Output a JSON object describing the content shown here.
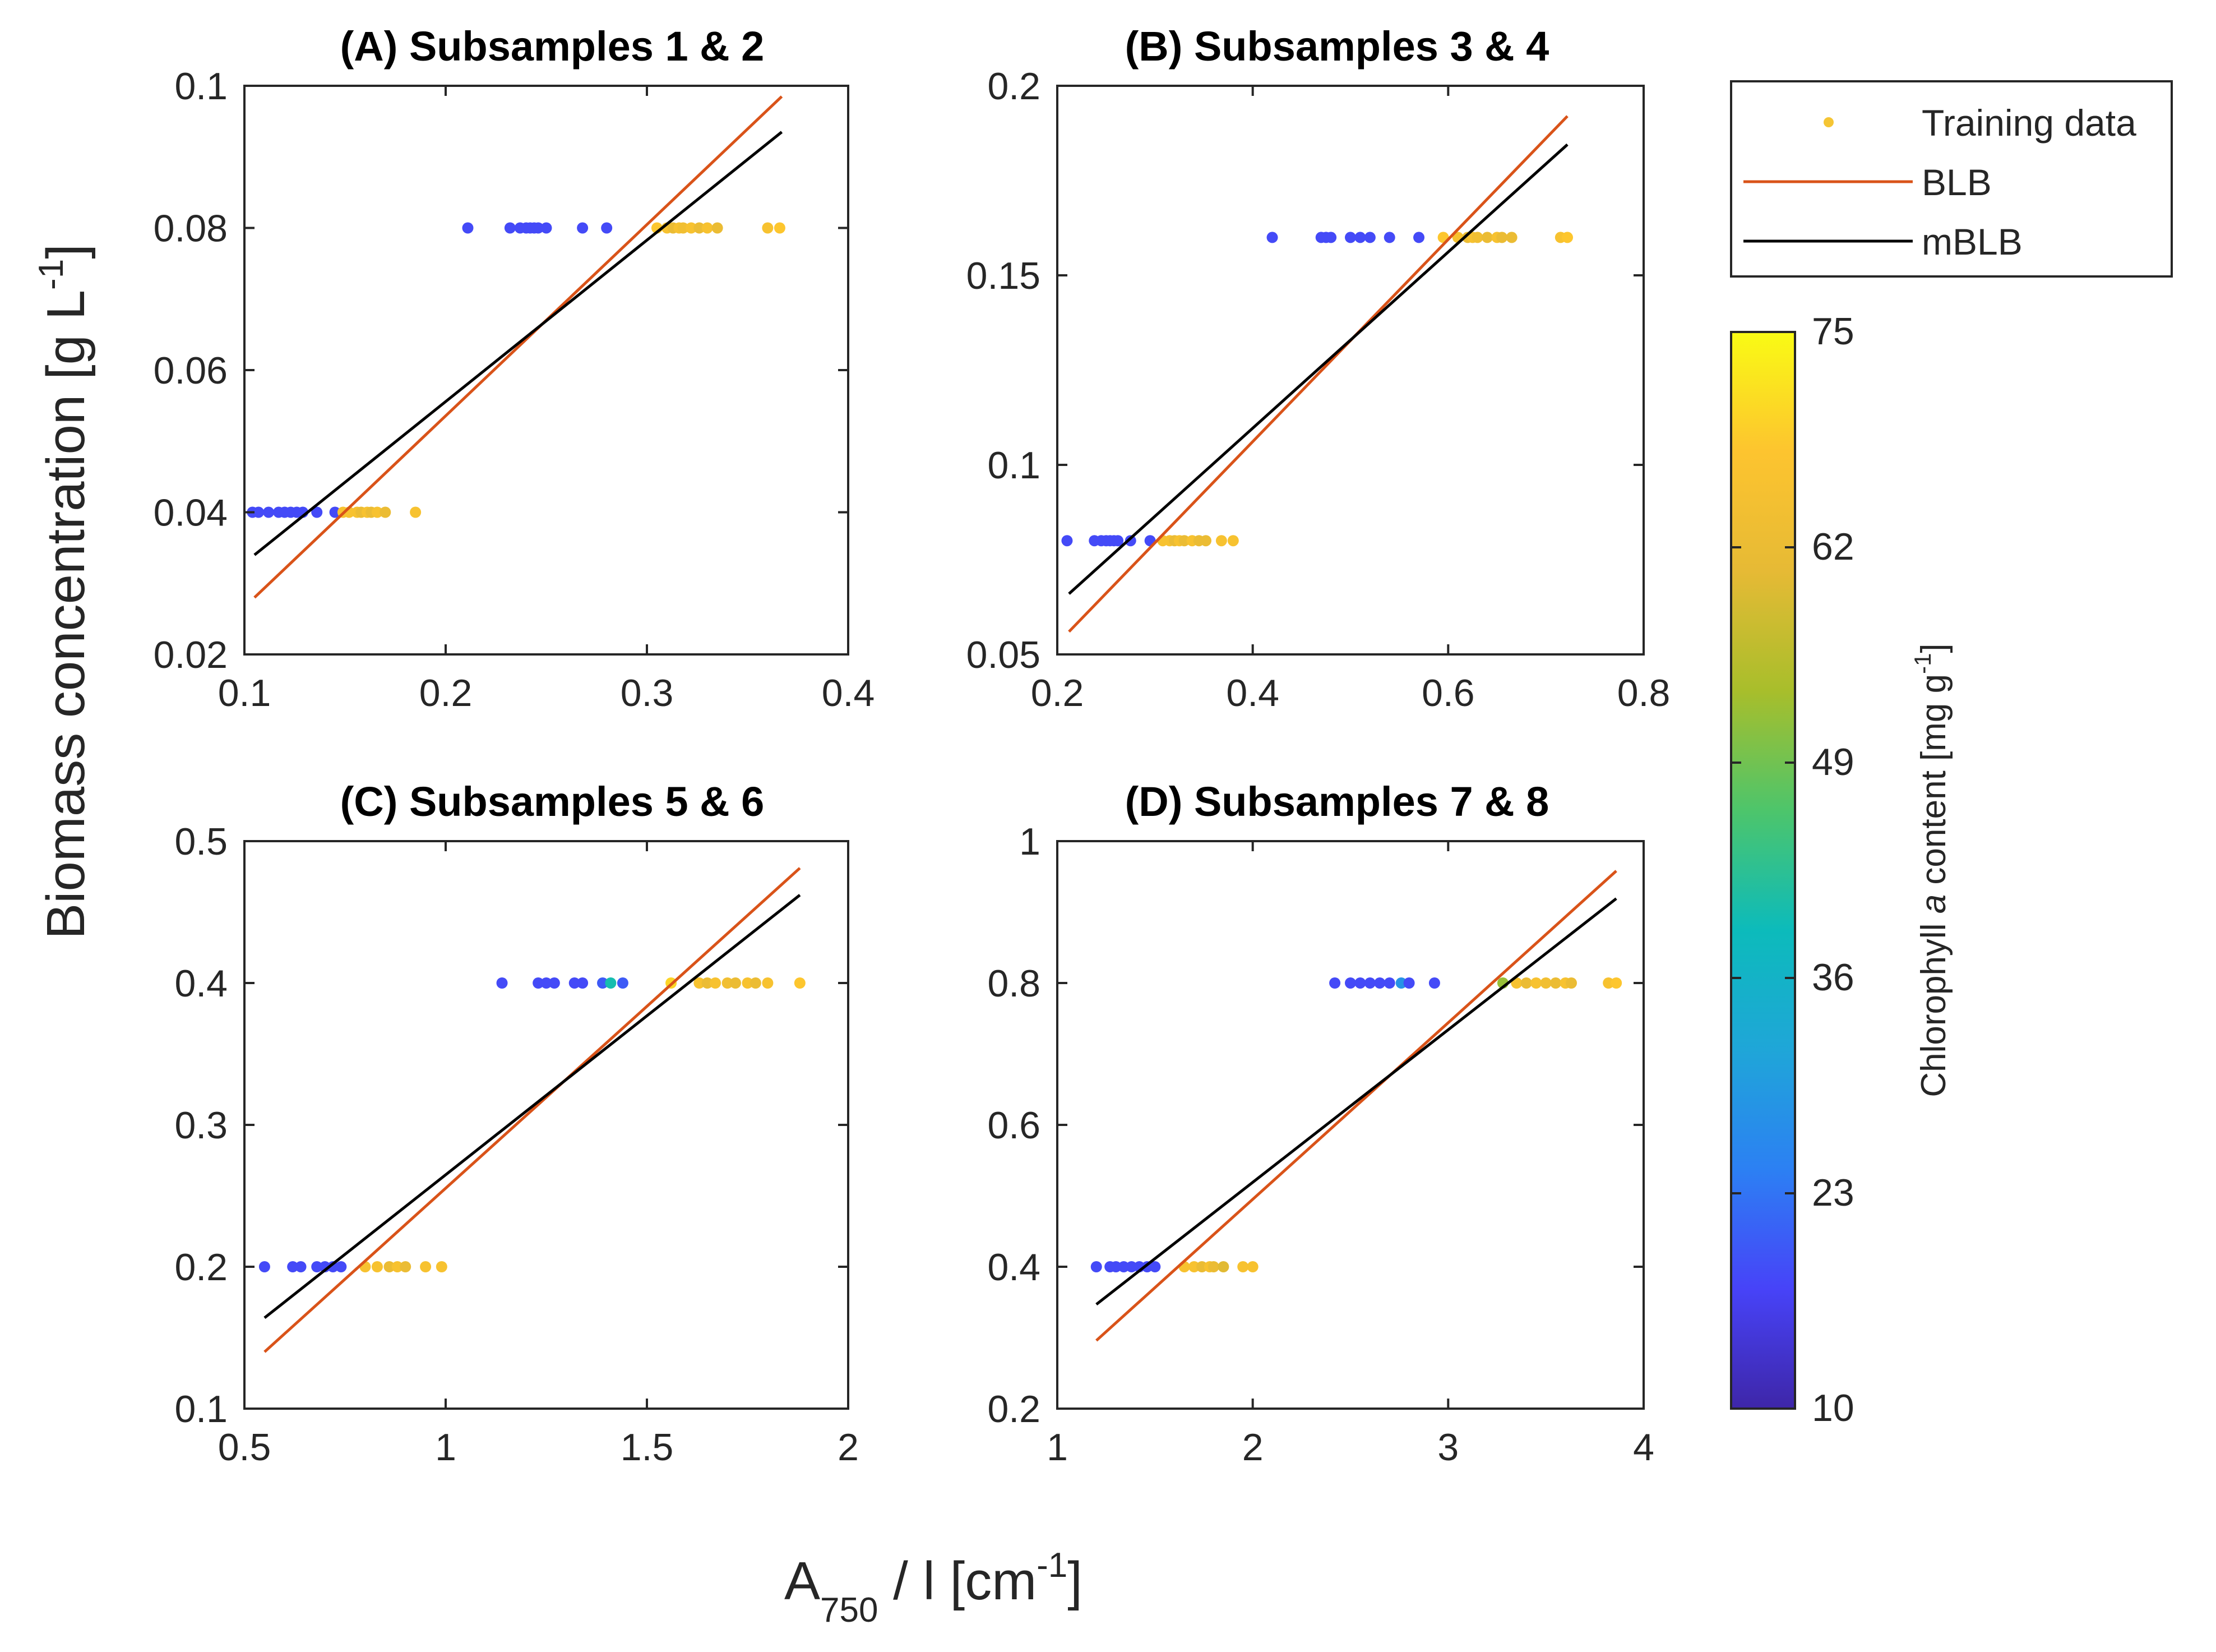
{
  "chart_data": {
    "type": "scatter",
    "ylabel": {
      "main": "Biomass concentration [g L",
      "sup": "-1",
      "tail": "]"
    },
    "xlabel": {
      "A": "A",
      "sub": "750",
      "mid": " / l [cm",
      "sup": "-1",
      "tail": "]"
    },
    "legend": {
      "entries": [
        {
          "label": "Training data",
          "kind": "marker",
          "color": "#F5C534"
        },
        {
          "label": "BLB",
          "kind": "line",
          "color": "#D95319"
        },
        {
          "label": "mBLB",
          "kind": "line",
          "color": "#000000"
        }
      ]
    },
    "colorbar": {
      "label_pre": "Chlorophyll ",
      "label_italic": "a",
      "label_post": " content [mg g",
      "label_sup": "-1",
      "label_tail": "]",
      "range": [
        10,
        75
      ],
      "ticks": [
        "10",
        "23",
        "36",
        "49",
        "62",
        "75"
      ],
      "colormap": [
        "#3E26A8",
        "#4743F8",
        "#2C80F3",
        "#1FA6D8",
        "#0CBBBB",
        "#4DC56B",
        "#A8BE2B",
        "#E6BA35",
        "#FDC42F",
        "#F9FB14"
      ]
    },
    "panels": [
      {
        "title": "(A) Subsamples 1 & 2",
        "xlim": [
          0.1,
          0.4
        ],
        "ylim": [
          0.02,
          0.1
        ],
        "xticks": [
          "0.1",
          "0.2",
          "0.3",
          "0.4"
        ],
        "yticks": [
          "0.02",
          "0.04",
          "0.06",
          "0.08",
          "0.1"
        ],
        "lines": [
          {
            "name": "BLB",
            "color": "#D95319",
            "x": [
              0.105,
              0.367
            ],
            "y": [
              0.028,
              0.0985
            ]
          },
          {
            "name": "mBLB",
            "color": "#000000",
            "x": [
              0.105,
              0.367
            ],
            "y": [
              0.034,
              0.0935
            ]
          }
        ],
        "groups": [
          {
            "y": 0.04,
            "points": [
              [
                0.104,
                18
              ],
              [
                0.107,
                18
              ],
              [
                0.112,
                18
              ],
              [
                0.117,
                18
              ],
              [
                0.12,
                18
              ],
              [
                0.123,
                18
              ],
              [
                0.126,
                18
              ],
              [
                0.129,
                18
              ],
              [
                0.136,
                18
              ],
              [
                0.145,
                18
              ],
              [
                0.149,
                66
              ],
              [
                0.152,
                66
              ],
              [
                0.156,
                66
              ],
              [
                0.158,
                62
              ],
              [
                0.161,
                66
              ],
              [
                0.163,
                62
              ],
              [
                0.166,
                66
              ],
              [
                0.17,
                62
              ],
              [
                0.185,
                66
              ]
            ]
          },
          {
            "y": 0.08,
            "points": [
              [
                0.211,
                18
              ],
              [
                0.232,
                18
              ],
              [
                0.237,
                18
              ],
              [
                0.24,
                18
              ],
              [
                0.242,
                18
              ],
              [
                0.244,
                18
              ],
              [
                0.246,
                18
              ],
              [
                0.25,
                18
              ],
              [
                0.268,
                18
              ],
              [
                0.28,
                18
              ],
              [
                0.305,
                68
              ],
              [
                0.31,
                66
              ],
              [
                0.313,
                62
              ],
              [
                0.316,
                66
              ],
              [
                0.318,
                64
              ],
              [
                0.322,
                66
              ],
              [
                0.326,
                62
              ],
              [
                0.33,
                66
              ],
              [
                0.335,
                62
              ],
              [
                0.36,
                66
              ],
              [
                0.366,
                68
              ]
            ]
          }
        ]
      },
      {
        "title": "(B) Subsamples 3 & 4",
        "xlim": [
          0.2,
          0.8
        ],
        "ylim": [
          0.05,
          0.2
        ],
        "xticks": [
          "0.2",
          "0.4",
          "0.6",
          "0.8"
        ],
        "yticks": [
          "0.05",
          "0.1",
          "0.15",
          "0.2"
        ],
        "lines": [
          {
            "name": "BLB",
            "color": "#D95319",
            "x": [
              0.212,
              0.722
            ],
            "y": [
              0.056,
              0.192
            ]
          },
          {
            "name": "mBLB",
            "color": "#000000",
            "x": [
              0.212,
              0.722
            ],
            "y": [
              0.066,
              0.1845
            ]
          }
        ],
        "groups": [
          {
            "y": 0.08,
            "points": [
              [
                0.21,
                18
              ],
              [
                0.238,
                18
              ],
              [
                0.245,
                18
              ],
              [
                0.25,
                18
              ],
              [
                0.254,
                18
              ],
              [
                0.258,
                18
              ],
              [
                0.262,
                18
              ],
              [
                0.275,
                18
              ],
              [
                0.295,
                18
              ],
              [
                0.308,
                66
              ],
              [
                0.315,
                66
              ],
              [
                0.32,
                62
              ],
              [
                0.325,
                66
              ],
              [
                0.33,
                62
              ],
              [
                0.338,
                66
              ],
              [
                0.345,
                62
              ],
              [
                0.352,
                62
              ],
              [
                0.368,
                66
              ],
              [
                0.38,
                66
              ]
            ]
          },
          {
            "y": 0.16,
            "points": [
              [
                0.42,
                18
              ],
              [
                0.47,
                18
              ],
              [
                0.475,
                18
              ],
              [
                0.48,
                18
              ],
              [
                0.5,
                18
              ],
              [
                0.51,
                18
              ],
              [
                0.52,
                18
              ],
              [
                0.54,
                18
              ],
              [
                0.57,
                18
              ],
              [
                0.595,
                68
              ],
              [
                0.61,
                66
              ],
              [
                0.62,
                62
              ],
              [
                0.625,
                66
              ],
              [
                0.63,
                64
              ],
              [
                0.64,
                62
              ],
              [
                0.65,
                66
              ],
              [
                0.655,
                62
              ],
              [
                0.665,
                62
              ],
              [
                0.715,
                66
              ],
              [
                0.722,
                68
              ]
            ]
          }
        ]
      },
      {
        "title": "(C) Subsamples 5 & 6",
        "xlim": [
          0.5,
          2.0
        ],
        "ylim": [
          0.1,
          0.5
        ],
        "xticks": [
          "0.5",
          "1",
          "1.5",
          "2"
        ],
        "yticks": [
          "0.1",
          "0.2",
          "0.3",
          "0.4",
          "0.5"
        ],
        "lines": [
          {
            "name": "BLB",
            "color": "#D95319",
            "x": [
              0.55,
              1.88
            ],
            "y": [
              0.14,
              0.481
            ]
          },
          {
            "name": "mBLB",
            "color": "#000000",
            "x": [
              0.55,
              1.88
            ],
            "y": [
              0.164,
              0.462
            ]
          }
        ],
        "groups": [
          {
            "y": 0.2,
            "points": [
              [
                0.55,
                18
              ],
              [
                0.62,
                18
              ],
              [
                0.64,
                18
              ],
              [
                0.68,
                18
              ],
              [
                0.7,
                18
              ],
              [
                0.72,
                18
              ],
              [
                0.74,
                18
              ],
              [
                0.8,
                66
              ],
              [
                0.83,
                66
              ],
              [
                0.86,
                62
              ],
              [
                0.88,
                66
              ],
              [
                0.9,
                62
              ],
              [
                0.95,
                66
              ],
              [
                0.99,
                66
              ]
            ]
          },
          {
            "y": 0.4,
            "points": [
              [
                1.14,
                18
              ],
              [
                1.23,
                18
              ],
              [
                1.25,
                18
              ],
              [
                1.27,
                18
              ],
              [
                1.32,
                18
              ],
              [
                1.34,
                18
              ],
              [
                1.39,
                20
              ],
              [
                1.41,
                40
              ],
              [
                1.44,
                20
              ],
              [
                1.56,
                70
              ],
              [
                1.63,
                66
              ],
              [
                1.65,
                62
              ],
              [
                1.67,
                66
              ],
              [
                1.7,
                64
              ],
              [
                1.72,
                62
              ],
              [
                1.75,
                66
              ],
              [
                1.77,
                62
              ],
              [
                1.8,
                66
              ],
              [
                1.88,
                68
              ]
            ]
          }
        ]
      },
      {
        "title": "(D) Subsamples 7 & 8",
        "xlim": [
          1,
          4
        ],
        "ylim": [
          0.2,
          1
        ],
        "xticks": [
          "1",
          "2",
          "3",
          "4"
        ],
        "yticks": [
          "0.2",
          "0.4",
          "0.6",
          "0.8",
          "1"
        ],
        "lines": [
          {
            "name": "BLB",
            "color": "#D95319",
            "x": [
              1.2,
              3.86
            ],
            "y": [
              0.296,
              0.958
            ]
          },
          {
            "name": "mBLB",
            "color": "#000000",
            "x": [
              1.2,
              3.86
            ],
            "y": [
              0.347,
              0.919
            ]
          }
        ],
        "groups": [
          {
            "y": 0.4,
            "points": [
              [
                1.2,
                18
              ],
              [
                1.27,
                18
              ],
              [
                1.3,
                18
              ],
              [
                1.34,
                18
              ],
              [
                1.38,
                18
              ],
              [
                1.42,
                18
              ],
              [
                1.46,
                18
              ],
              [
                1.5,
                18
              ],
              [
                1.65,
                66
              ],
              [
                1.7,
                66
              ],
              [
                1.74,
                62
              ],
              [
                1.78,
                66
              ],
              [
                1.8,
                62
              ],
              [
                1.85,
                60
              ],
              [
                1.95,
                66
              ],
              [
                2.0,
                66
              ]
            ]
          },
          {
            "y": 0.8,
            "points": [
              [
                2.42,
                18
              ],
              [
                2.5,
                18
              ],
              [
                2.55,
                18
              ],
              [
                2.6,
                18
              ],
              [
                2.65,
                18
              ],
              [
                2.7,
                18
              ],
              [
                2.76,
                28
              ],
              [
                2.8,
                18
              ],
              [
                2.93,
                18
              ],
              [
                3.28,
                52
              ],
              [
                3.35,
                66
              ],
              [
                3.4,
                62
              ],
              [
                3.45,
                66
              ],
              [
                3.5,
                64
              ],
              [
                3.55,
                62
              ],
              [
                3.6,
                66
              ],
              [
                3.63,
                62
              ],
              [
                3.82,
                66
              ],
              [
                3.86,
                68
              ]
            ]
          }
        ]
      }
    ]
  }
}
